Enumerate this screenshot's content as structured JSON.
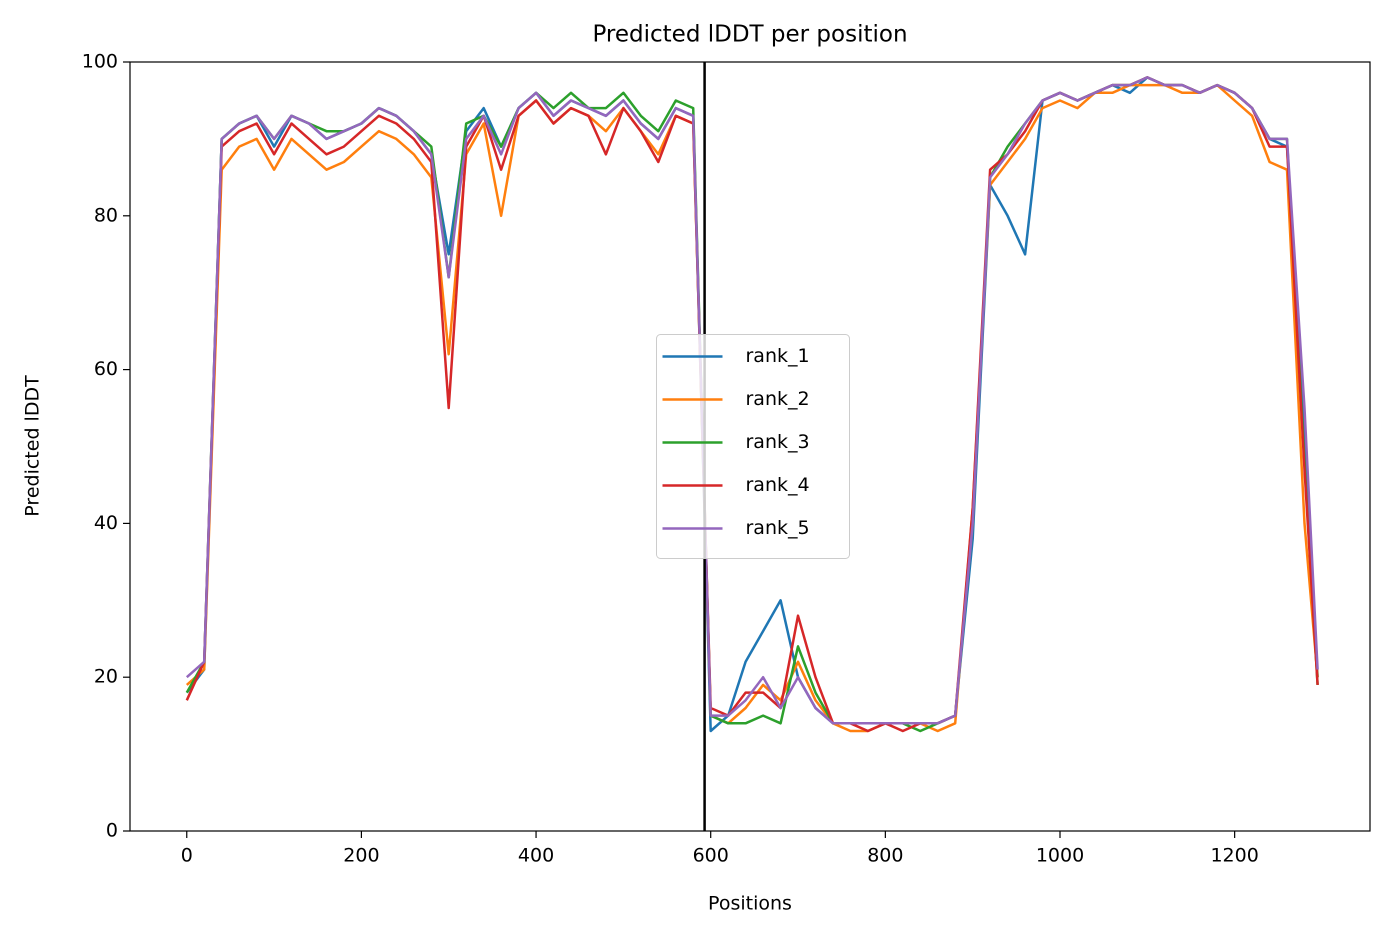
{
  "chart_data": {
    "type": "line",
    "title": "Predicted lDDT per position",
    "xlabel": "Positions",
    "ylabel": "Predicted lDDT",
    "x": [
      0,
      20,
      40,
      60,
      80,
      100,
      120,
      140,
      160,
      180,
      200,
      220,
      240,
      260,
      280,
      300,
      320,
      340,
      360,
      380,
      400,
      420,
      440,
      460,
      480,
      500,
      520,
      540,
      560,
      580,
      600,
      620,
      640,
      660,
      680,
      700,
      720,
      740,
      760,
      780,
      800,
      820,
      840,
      860,
      880,
      900,
      920,
      940,
      960,
      980,
      1000,
      1020,
      1040,
      1060,
      1080,
      1100,
      1120,
      1140,
      1160,
      1180,
      1200,
      1220,
      1240,
      1260,
      1280,
      1295
    ],
    "series": [
      {
        "name": "rank_1",
        "color": "#1f77b4",
        "values": [
          18,
          21,
          90,
          92,
          93,
          89,
          93,
          92,
          90,
          91,
          92,
          94,
          93,
          91,
          88,
          75,
          91,
          94,
          89,
          94,
          96,
          93,
          95,
          94,
          93,
          95,
          92,
          90,
          94,
          93,
          13,
          15,
          22,
          26,
          30,
          20,
          16,
          14,
          14,
          14,
          14,
          14,
          14,
          14,
          15,
          38,
          84,
          80,
          75,
          95,
          96,
          95,
          96,
          97,
          96,
          98,
          97,
          97,
          96,
          97,
          96,
          94,
          90,
          89,
          52,
          20
        ]
      },
      {
        "name": "rank_2",
        "color": "#ff7f0e",
        "values": [
          19,
          21,
          86,
          89,
          90,
          86,
          90,
          88,
          86,
          87,
          89,
          91,
          90,
          88,
          85,
          62,
          88,
          92,
          80,
          93,
          95,
          92,
          94,
          93,
          91,
          94,
          91,
          88,
          93,
          92,
          15,
          14,
          16,
          19,
          17,
          22,
          17,
          14,
          13,
          13,
          14,
          14,
          14,
          13,
          14,
          42,
          84,
          87,
          90,
          94,
          95,
          94,
          96,
          96,
          97,
          97,
          97,
          96,
          96,
          97,
          95,
          93,
          87,
          86,
          40,
          20
        ]
      },
      {
        "name": "rank_3",
        "color": "#2ca02c",
        "values": [
          18,
          22,
          90,
          92,
          93,
          90,
          93,
          92,
          91,
          91,
          92,
          94,
          93,
          91,
          89,
          72,
          92,
          93,
          89,
          94,
          96,
          94,
          96,
          94,
          94,
          96,
          93,
          91,
          95,
          94,
          15,
          14,
          14,
          15,
          14,
          24,
          18,
          14,
          14,
          14,
          14,
          14,
          13,
          14,
          15,
          40,
          85,
          89,
          92,
          95,
          96,
          95,
          96,
          97,
          97,
          98,
          97,
          97,
          96,
          97,
          96,
          94,
          90,
          90,
          48,
          19
        ]
      },
      {
        "name": "rank_4",
        "color": "#d62728",
        "values": [
          17,
          22,
          89,
          91,
          92,
          88,
          92,
          90,
          88,
          89,
          91,
          93,
          92,
          90,
          87,
          55,
          89,
          93,
          86,
          93,
          95,
          92,
          94,
          93,
          88,
          94,
          91,
          87,
          93,
          92,
          16,
          15,
          18,
          18,
          16,
          28,
          20,
          14,
          14,
          13,
          14,
          13,
          14,
          14,
          15,
          42,
          86,
          88,
          91,
          95,
          96,
          95,
          96,
          97,
          97,
          98,
          97,
          97,
          96,
          97,
          96,
          94,
          89,
          89,
          47,
          19
        ]
      },
      {
        "name": "rank_5",
        "color": "#9467bd",
        "values": [
          20,
          22,
          90,
          92,
          93,
          90,
          93,
          92,
          90,
          91,
          92,
          94,
          93,
          91,
          88,
          72,
          90,
          93,
          88,
          94,
          96,
          93,
          95,
          94,
          93,
          95,
          92,
          90,
          94,
          93,
          15,
          15,
          17,
          20,
          16,
          20,
          16,
          14,
          14,
          14,
          14,
          14,
          14,
          14,
          15,
          40,
          85,
          88,
          92,
          95,
          96,
          95,
          96,
          97,
          97,
          98,
          97,
          97,
          96,
          97,
          96,
          94,
          90,
          90,
          55,
          21
        ]
      }
    ],
    "vline": 593,
    "vline_color": "#000000",
    "xlim": [
      -65,
      1355
    ],
    "xticks": [
      0,
      200,
      400,
      600,
      800,
      1000,
      1200
    ],
    "ylim": [
      0,
      100
    ],
    "yticks": [
      0,
      20,
      40,
      60,
      80,
      100
    ],
    "legend": "center"
  }
}
